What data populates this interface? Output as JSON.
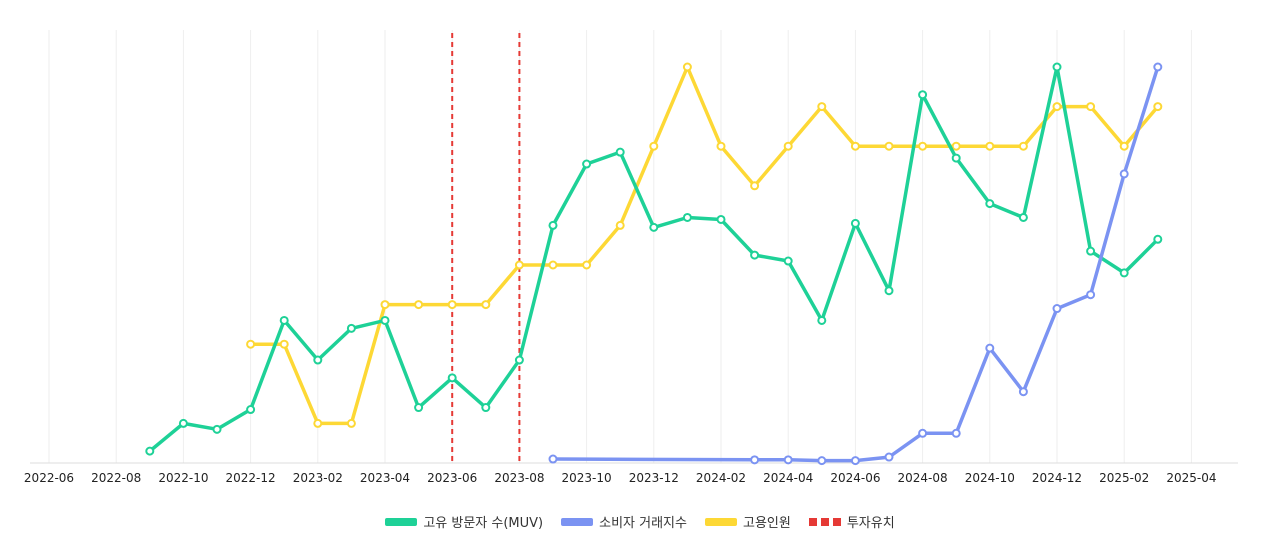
{
  "chart_data": {
    "type": "line",
    "x_ticks": [
      "2022-06",
      "2022-08",
      "2022-10",
      "2022-12",
      "2023-02",
      "2023-04",
      "2023-06",
      "2023-08",
      "2023-10",
      "2023-12",
      "2024-02",
      "2024-04",
      "2024-06",
      "2024-08",
      "2024-10",
      "2024-12",
      "2025-02",
      "2025-04"
    ],
    "xlim": [
      "2022-06",
      "2025-05"
    ],
    "grid": "vertical",
    "legend_position": "bottom",
    "series": [
      {
        "name": "고유 방문자 수(MUV)",
        "color": "#1ed197",
        "points": [
          [
            "2022-09",
            0.03
          ],
          [
            "2022-10",
            0.1
          ],
          [
            "2022-11",
            0.085
          ],
          [
            "2022-12",
            0.135
          ],
          [
            "2023-01",
            0.36
          ],
          [
            "2023-02",
            0.26
          ],
          [
            "2023-03",
            0.34
          ],
          [
            "2023-04",
            0.36
          ],
          [
            "2023-05",
            0.14
          ],
          [
            "2023-06",
            0.215
          ],
          [
            "2023-07",
            0.14
          ],
          [
            "2023-08",
            0.26
          ],
          [
            "2023-09",
            0.6
          ],
          [
            "2023-10",
            0.755
          ],
          [
            "2023-11",
            0.785
          ],
          [
            "2023-12",
            0.595
          ],
          [
            "2024-01",
            0.62
          ],
          [
            "2024-02",
            0.615
          ],
          [
            "2024-03",
            0.525
          ],
          [
            "2024-04",
            0.51
          ],
          [
            "2024-05",
            0.36
          ],
          [
            "2024-06",
            0.605
          ],
          [
            "2024-07",
            0.435
          ],
          [
            "2024-08",
            0.93
          ],
          [
            "2024-09",
            0.77
          ],
          [
            "2024-10",
            0.655
          ],
          [
            "2024-11",
            0.62
          ],
          [
            "2024-12",
            1.0
          ],
          [
            "2025-01",
            0.535
          ],
          [
            "2025-02",
            0.48
          ],
          [
            "2025-03",
            0.565
          ]
        ]
      },
      {
        "name": "소비자 거래지수",
        "color": "#7b93f2",
        "points": [
          [
            "2023-09",
            0.01
          ],
          [
            "2024-03",
            0.008
          ],
          [
            "2024-04",
            0.008
          ],
          [
            "2024-05",
            0.006
          ],
          [
            "2024-06",
            0.006
          ],
          [
            "2024-07",
            0.015
          ],
          [
            "2024-08",
            0.075
          ],
          [
            "2024-09",
            0.075
          ],
          [
            "2024-10",
            0.29
          ],
          [
            "2024-11",
            0.18
          ],
          [
            "2024-12",
            0.39
          ],
          [
            "2025-01",
            0.425
          ],
          [
            "2025-02",
            0.73
          ],
          [
            "2025-03",
            1.0
          ]
        ]
      },
      {
        "name": "고용인원",
        "color": "#fdd835",
        "points": [
          [
            "2022-12",
            0.3
          ],
          [
            "2023-01",
            0.3
          ],
          [
            "2023-02",
            0.1
          ],
          [
            "2023-03",
            0.1
          ],
          [
            "2023-04",
            0.4
          ],
          [
            "2023-05",
            0.4
          ],
          [
            "2023-06",
            0.4
          ],
          [
            "2023-07",
            0.4
          ],
          [
            "2023-08",
            0.5
          ],
          [
            "2023-09",
            0.5
          ],
          [
            "2023-10",
            0.5
          ],
          [
            "2023-11",
            0.6
          ],
          [
            "2023-12",
            0.8
          ],
          [
            "2024-01",
            1.0
          ],
          [
            "2024-02",
            0.8
          ],
          [
            "2024-03",
            0.7
          ],
          [
            "2024-04",
            0.8
          ],
          [
            "2024-05",
            0.9
          ],
          [
            "2024-06",
            0.8
          ],
          [
            "2024-07",
            0.8
          ],
          [
            "2024-08",
            0.8
          ],
          [
            "2024-09",
            0.8
          ],
          [
            "2024-10",
            0.8
          ],
          [
            "2024-11",
            0.8
          ],
          [
            "2024-12",
            0.9
          ],
          [
            "2025-01",
            0.9
          ],
          [
            "2025-02",
            0.8
          ],
          [
            "2025-03",
            0.9
          ]
        ]
      }
    ],
    "annotations": {
      "name": "투자유치",
      "color": "#e53935",
      "dates": [
        "2023-06",
        "2023-08"
      ]
    }
  }
}
